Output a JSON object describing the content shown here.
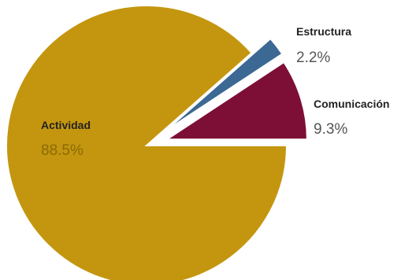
{
  "chart_data": {
    "type": "pie",
    "title": "",
    "slices": [
      {
        "label": "Actividad",
        "value": 88.5,
        "value_label": "88.5%",
        "color": "#C4960F"
      },
      {
        "label": "Estructura",
        "value": 2.2,
        "value_label": "2.2%",
        "color": "#3C6894"
      },
      {
        "label": "Comunicación",
        "value": 9.3,
        "value_label": "9.3%",
        "color": "#7D0F36"
      }
    ],
    "exploded": [
      "Estructura",
      "Comunicación"
    ],
    "legend": "none"
  }
}
